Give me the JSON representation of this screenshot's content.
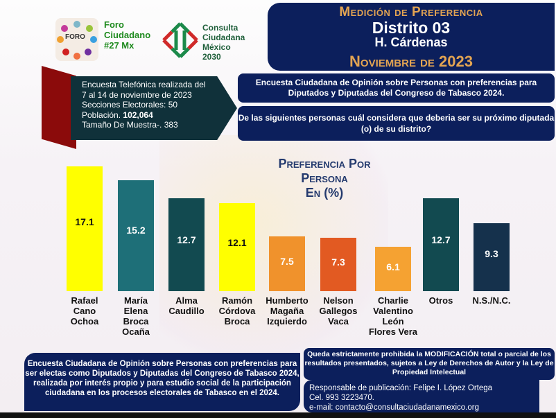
{
  "logos": {
    "foro": {
      "name": "Foro Ciudadano #27 Mx",
      "mark": "FORO #27 Mx",
      "lines": [
        "Foro",
        "Ciudadano",
        "#27 Mx"
      ]
    },
    "consulta": {
      "lines": [
        "Consulta",
        "Ciudadana",
        "México",
        "2030"
      ]
    }
  },
  "header": {
    "title": "Medición de Preferencia",
    "district": "Distrito 03",
    "place": "H. Cárdenas",
    "date": "Noviembre de 2023"
  },
  "info": {
    "line1": "Encuesta Telefónica realizada del",
    "line2": "7 al 14 de noviembre de 2023",
    "line3": "Secciones Electorales: 50",
    "pop_label": "Población.",
    "pop_value": "102,064",
    "line5": "Tamaño De Muestra-. 383"
  },
  "survey_title": "Encuesta Ciudadana de Opinión sobre Personas con preferencias para Diputados y Diputadas  del Congreso de Tabasco 2024.",
  "question": "De las siguientes personas cuál considera que deberia ser su próximo diputada (o) de su distrito?",
  "chart_data": {
    "type": "bar",
    "title": "Preferencia Por Persona En (%)",
    "title_lines": [
      "Preferencia Por",
      "Persona",
      "En (%)"
    ],
    "categories": [
      "Rafael Cano Ochoa",
      "María Elena Broca Ocaña",
      "Alma Caudillo",
      "Ramón Córdova Broca",
      "Humberto Magaña Izquierdo",
      "Nelson Gallegos Vaca",
      "Charlie Valentino León Flores Vera",
      "Otros",
      "N.S./N.C."
    ],
    "category_lines": [
      [
        "Rafael",
        "Cano",
        "Ochoa"
      ],
      [
        "María",
        "Elena",
        "Broca",
        "Ocaña"
      ],
      [
        "Alma",
        "Caudillo"
      ],
      [
        "Ramón",
        "Córdova",
        "Broca"
      ],
      [
        "Humberto",
        "Magaña",
        "Izquierdo"
      ],
      [
        "Nelson",
        "Gallegos",
        "Vaca"
      ],
      [
        "Charlie",
        "Valentino",
        "León",
        "Flores Vera"
      ],
      [
        "Otros"
      ],
      [
        "N.S./N.C."
      ]
    ],
    "values": [
      17.1,
      15.2,
      12.7,
      12.1,
      7.5,
      7.3,
      6.1,
      12.7,
      9.3
    ],
    "value_labels": [
      "17.1",
      "15.2",
      "12.7",
      "12.1",
      "7.5",
      "7.3",
      "6.1",
      "12.7",
      "9.3"
    ],
    "colors": [
      "#ffff00",
      "#1e6f78",
      "#124a50",
      "#ffff00",
      "#f0922c",
      "#e25a22",
      "#f5a232",
      "#124a50",
      "#15314c"
    ],
    "label_colors": [
      "#111",
      "#fff",
      "#fff",
      "#111",
      "#fff",
      "#fff",
      "#fff",
      "#fff",
      "#fff"
    ],
    "xlabel": "",
    "ylabel": "",
    "ylim": [
      0,
      18
    ]
  },
  "footer": {
    "about": "Encuesta Ciudadana de Opinión sobre Personas con preferencias para ser electas como Diputados y Diputadas  del Congreso de Tabasco 2024, realizada por interés propio y para estudio social de la participación ciudadana en los procesos electorales de Tabasco en el 2024.",
    "legal": "Queda estrictamente prohibida la MODIFICACIÓN  total o parcial de los resultados presentados, sujetos a Ley de Derechos de Autor y la Ley de Propiedad Intelectual",
    "responsible": "Responsable de publicación: Felipe I. López Ortega",
    "phone": "Cel. 993 3223470.",
    "email": "e-mail: contacto@consultaciudadanamexico.org"
  }
}
